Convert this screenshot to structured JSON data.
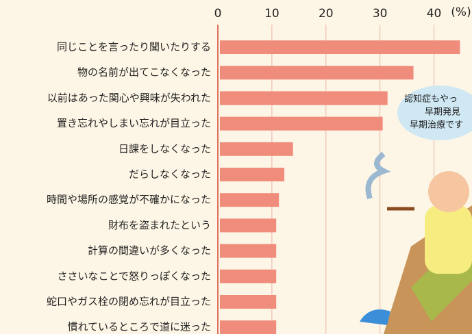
{
  "chart_data": {
    "type": "bar",
    "orientation": "horizontal",
    "categories": [
      "同じことを言ったり聞いたりする",
      "物の名前が出てこなくなった",
      "以前はあった関心や興味が失われた",
      "置き忘れやしまい忘れが目立った",
      "日課をしなくなった",
      "だらしなくなった",
      "時間や場所の感覚が不確かになった",
      "財布を盗まれたという",
      "計算の間違いが多くなった",
      "ささいなことで怒りっぽくなった",
      "蛇口やガス栓の閉め忘れが目立った",
      "慣れているところで道に迷った"
    ],
    "values": [
      44.8,
      36.2,
      31.4,
      30.5,
      13.9,
      12.3,
      11.3,
      10.8,
      10.8,
      10.8,
      10.8,
      10.8
    ],
    "color": "#f08c7c",
    "xlim": [
      0,
      45
    ],
    "xticks": [
      0,
      10,
      20,
      30,
      40
    ],
    "grid": true,
    "unit_label": "(%)",
    "annotation": [
      "認知症もやっ",
      "早期発見",
      "早期治療です"
    ]
  }
}
